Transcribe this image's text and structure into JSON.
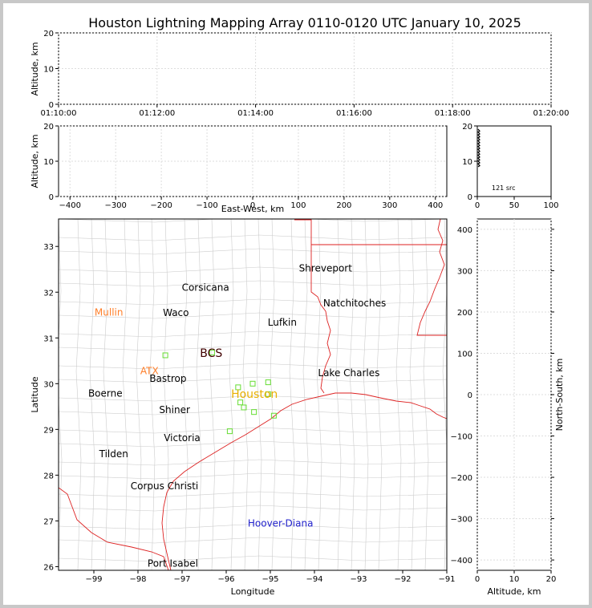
{
  "title": "Houston Lightning Mapping Array 0110-0120 UTC January 10, 2025",
  "chart_data": [
    {
      "name": "time-altitude",
      "type": "scatter",
      "xlabel": "",
      "ylabel": "Altitude, km",
      "xticks": [
        "01:10:00",
        "01:12:00",
        "01:14:00",
        "01:16:00",
        "01:18:00",
        "01:20:00"
      ],
      "yticks": [
        0,
        10,
        20
      ],
      "ylim": [
        0,
        20
      ],
      "grid": true
    },
    {
      "name": "eastwest-altitude",
      "type": "scatter",
      "xlabel": "East-West, km",
      "ylabel": "Altitude, km",
      "xticks": [
        -400,
        -300,
        -200,
        -100,
        0,
        100,
        200,
        300,
        400
      ],
      "xlim": [
        -425,
        425
      ],
      "yticks": [
        0,
        10,
        20
      ],
      "ylim": [
        0,
        20
      ],
      "grid": true
    },
    {
      "name": "altitude-histogram",
      "type": "bar",
      "xticks": [
        0,
        50,
        100
      ],
      "xlim": [
        0,
        100
      ],
      "yticks": [
        0,
        10,
        20
      ],
      "ylim": [
        0,
        20
      ],
      "source_count_label": "121 src"
    },
    {
      "name": "plan-view-map",
      "type": "scatter",
      "xlabel": "Longitude",
      "ylabel": "Latitude",
      "xticks": [
        -99,
        -98,
        -97,
        -96,
        -95,
        -94,
        -93,
        -92,
        -91
      ],
      "xlim": [
        -99.8,
        -91
      ],
      "yticks": [
        26,
        27,
        28,
        29,
        30,
        31,
        32,
        33
      ],
      "ylim": [
        25.92,
        33.6
      ],
      "cities": [
        {
          "name": "Shreveport",
          "lon": -93.75,
          "lat": 32.52,
          "color": "#000000"
        },
        {
          "name": "Corsicana",
          "lon": -96.47,
          "lat": 32.1,
          "color": "#000000"
        },
        {
          "name": "Natchitoches",
          "lon": -93.09,
          "lat": 31.76,
          "color": "#000000"
        },
        {
          "name": "Mullin",
          "lon": -98.66,
          "lat": 31.56,
          "color": "#ff7f2a"
        },
        {
          "name": "Waco",
          "lon": -97.14,
          "lat": 31.55,
          "color": "#000000"
        },
        {
          "name": "Lufkin",
          "lon": -94.73,
          "lat": 31.34,
          "color": "#000000"
        },
        {
          "name": "BCS",
          "lon": -96.34,
          "lat": 30.65,
          "color": "#400000"
        },
        {
          "name": "ATX",
          "lon": -97.74,
          "lat": 30.28,
          "color": "#ff7f2a"
        },
        {
          "name": "Bastrop",
          "lon": -97.32,
          "lat": 30.11,
          "color": "#000000"
        },
        {
          "name": "Lake Charles",
          "lon": -93.22,
          "lat": 30.23,
          "color": "#000000"
        },
        {
          "name": "Houston",
          "lon": -95.36,
          "lat": 29.76,
          "color": "#e8b000"
        },
        {
          "name": "Boerne",
          "lon": -98.74,
          "lat": 29.79,
          "color": "#000000"
        },
        {
          "name": "Shiner",
          "lon": -97.17,
          "lat": 29.43,
          "color": "#000000"
        },
        {
          "name": "Victoria",
          "lon": -97.0,
          "lat": 28.81,
          "color": "#000000"
        },
        {
          "name": "Tilden",
          "lon": -98.55,
          "lat": 28.46,
          "color": "#000000"
        },
        {
          "name": "Corpus Christi",
          "lon": -97.4,
          "lat": 27.76,
          "color": "#000000"
        },
        {
          "name": "Hoover-Diana",
          "lon": -94.77,
          "lat": 26.95,
          "color": "#2222cc"
        },
        {
          "name": "Port Isabel",
          "lon": -97.21,
          "lat": 26.07,
          "color": "#000000"
        }
      ],
      "stations": [
        {
          "lon": -97.38,
          "lat": 30.62
        },
        {
          "lon": -96.32,
          "lat": 30.68
        },
        {
          "lon": -95.73,
          "lat": 29.92
        },
        {
          "lon": -95.4,
          "lat": 30.0
        },
        {
          "lon": -95.05,
          "lat": 30.03
        },
        {
          "lon": -95.68,
          "lat": 29.59
        },
        {
          "lon": -95.6,
          "lat": 29.48
        },
        {
          "lon": -95.37,
          "lat": 29.38
        },
        {
          "lon": -95.05,
          "lat": 29.77
        },
        {
          "lon": -94.92,
          "lat": 29.3
        },
        {
          "lon": -95.92,
          "lat": 28.96
        }
      ]
    },
    {
      "name": "altitude-northsouth",
      "type": "scatter",
      "xlabel": "Altitude, km",
      "ylabel": "North-South, km",
      "xticks": [
        0,
        10,
        20
      ],
      "xlim": [
        0,
        20
      ],
      "yticks": [
        -400,
        -300,
        -200,
        -100,
        0,
        100,
        200,
        300,
        400
      ],
      "ylim": [
        -425,
        425
      ],
      "grid": true
    }
  ],
  "colors": {
    "state_border": "#dd2222",
    "coast": "#dd2222",
    "county": "#bbbbbb",
    "station": "#66dd33",
    "axis": "#000000"
  }
}
